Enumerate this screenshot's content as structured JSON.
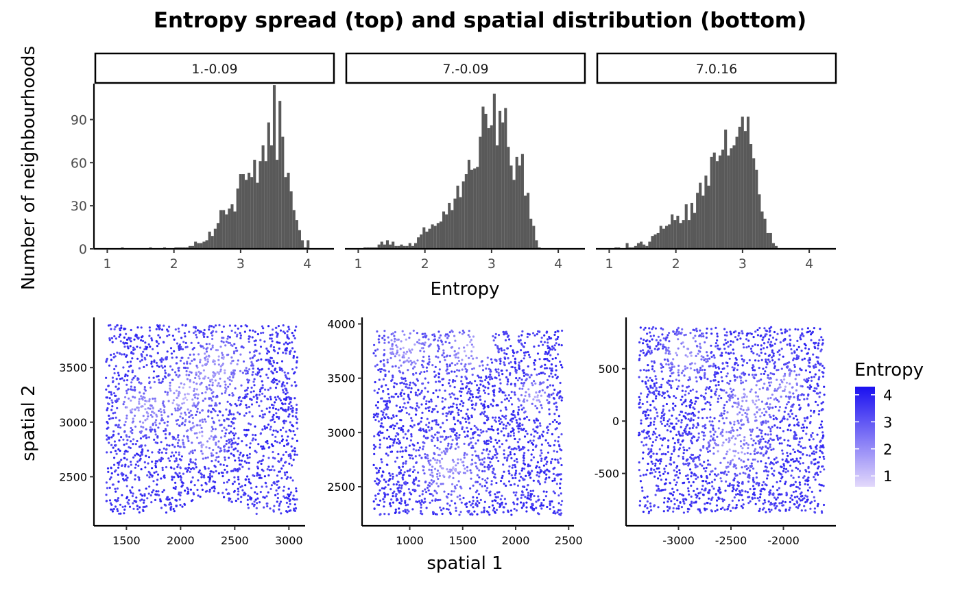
{
  "title": "Entropy spread (top) and spatial distribution (bottom)",
  "colors": {
    "bar": "#595959",
    "low": "#e3d9fb",
    "high": "#1a10f0",
    "axis": "#000000"
  },
  "chart_data": [
    {
      "type": "bar",
      "facets": [
        "1.-0.09",
        "7.-0.09",
        "7.0.16"
      ],
      "xlabel": "Entropy",
      "ylabel": "Number of neighbourhoods",
      "xlim": [
        0.8,
        4.4
      ],
      "ylim": [
        0,
        115
      ],
      "x_ticks": [
        1,
        2,
        3,
        4
      ],
      "y_ticks": [
        0,
        30,
        60,
        90
      ],
      "bin_start": 0.91,
      "bin_width": 0.0422,
      "series": [
        {
          "facet": "1.-0.09",
          "values": [
            0,
            0,
            0,
            0,
            0,
            0,
            0,
            1,
            0,
            0,
            0,
            0,
            0,
            0,
            0,
            0,
            0,
            1,
            0,
            0,
            0,
            0,
            1,
            0,
            0,
            0,
            1,
            1,
            1,
            1,
            1,
            2,
            2,
            5,
            4,
            4,
            5,
            6,
            12,
            9,
            14,
            18,
            27,
            27,
            24,
            28,
            31,
            26,
            42,
            52,
            52,
            48,
            53,
            50,
            62,
            46,
            61,
            72,
            61,
            88,
            72,
            114,
            62,
            103,
            78,
            50,
            53,
            40,
            27,
            20,
            13,
            6,
            1,
            6
          ]
        },
        {
          "facet": "7.-0.09",
          "values": [
            0,
            0,
            0,
            0,
            1,
            1,
            1,
            1,
            1,
            3,
            5,
            3,
            6,
            3,
            5,
            2,
            2,
            3,
            2,
            2,
            4,
            2,
            4,
            8,
            10,
            15,
            12,
            14,
            17,
            16,
            18,
            19,
            26,
            24,
            32,
            27,
            35,
            44,
            36,
            47,
            52,
            62,
            55,
            56,
            57,
            78,
            99,
            94,
            84,
            86,
            108,
            72,
            96,
            88,
            98,
            71,
            58,
            48,
            64,
            58,
            66,
            37,
            39,
            21,
            16,
            6,
            1
          ]
        },
        {
          "facet": "7.0.16",
          "values": [
            0,
            0,
            0,
            0,
            1,
            1,
            0,
            0,
            4,
            1,
            1,
            2,
            4,
            5,
            3,
            2,
            5,
            9,
            10,
            11,
            16,
            14,
            16,
            17,
            24,
            20,
            23,
            18,
            20,
            31,
            20,
            32,
            25,
            39,
            46,
            37,
            51,
            44,
            64,
            67,
            61,
            65,
            69,
            83,
            65,
            70,
            72,
            78,
            85,
            92,
            82,
            92,
            73,
            63,
            55,
            38,
            26,
            21,
            11,
            11,
            4,
            2
          ]
        }
      ]
    },
    {
      "type": "scatter",
      "facets": [
        "1.-0.09",
        "7.-0.09",
        "7.0.16"
      ],
      "xlabel": "spatial 1",
      "ylabel": "spatial 2",
      "color_by": "Entropy",
      "color_range": [
        0.6,
        4.3
      ],
      "panels": [
        {
          "xlim": [
            1200,
            3150
          ],
          "ylim": [
            2050,
            3960
          ],
          "x_ticks": [
            1500,
            2000,
            2500,
            3000
          ],
          "y_ticks": [
            2500,
            3000,
            3500
          ],
          "x_range": [
            1310,
            3080
          ],
          "y_range": [
            2160,
            3890
          ],
          "n": 2100,
          "seed": 11
        },
        {
          "xlim": [
            550,
            2550
          ],
          "ylim": [
            2140,
            4060
          ],
          "x_ticks": [
            1000,
            1500,
            2000,
            2500
          ],
          "y_ticks": [
            2500,
            3000,
            3500,
            4000
          ],
          "x_range": [
            660,
            2440
          ],
          "y_range": [
            2240,
            3940
          ],
          "n": 2100,
          "seed": 23
        },
        {
          "xlim": [
            -3500,
            -1500
          ],
          "ylim": [
            -1000,
            990
          ],
          "x_ticks": [
            -3000,
            -2500,
            -2000
          ],
          "y_ticks": [
            -500,
            0,
            500
          ],
          "x_range": [
            -3380,
            -1610
          ],
          "y_range": [
            -880,
            900
          ],
          "n": 2100,
          "seed": 37
        }
      ]
    }
  ],
  "legend": {
    "title": "Entropy",
    "labels": [
      "4",
      "3",
      "2",
      "1"
    ],
    "values": [
      4,
      3,
      2,
      1
    ]
  }
}
